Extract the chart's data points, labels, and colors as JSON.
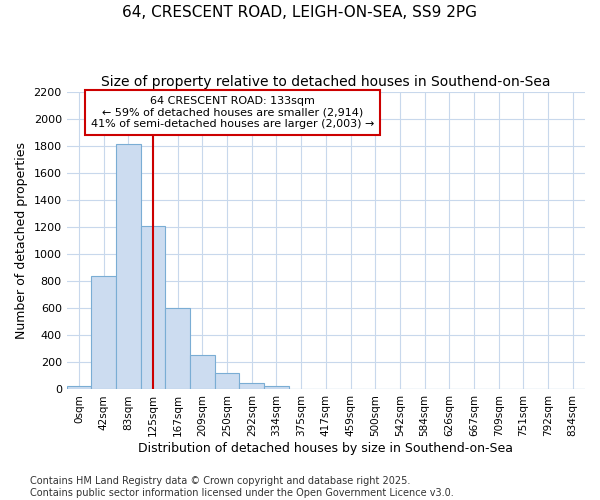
{
  "title1": "64, CRESCENT ROAD, LEIGH-ON-SEA, SS9 2PG",
  "title2": "Size of property relative to detached houses in Southend-on-Sea",
  "xlabel": "Distribution of detached houses by size in Southend-on-Sea",
  "ylabel": "Number of detached properties",
  "footnote": "Contains HM Land Registry data © Crown copyright and database right 2025.\nContains public sector information licensed under the Open Government Licence v3.0.",
  "bin_labels": [
    "0sqm",
    "42sqm",
    "83sqm",
    "125sqm",
    "167sqm",
    "209sqm",
    "250sqm",
    "292sqm",
    "334sqm",
    "375sqm",
    "417sqm",
    "459sqm",
    "500sqm",
    "542sqm",
    "584sqm",
    "626sqm",
    "667sqm",
    "709sqm",
    "751sqm",
    "792sqm",
    "834sqm"
  ],
  "bar_heights": [
    25,
    840,
    1810,
    1210,
    600,
    255,
    125,
    50,
    25,
    0,
    0,
    0,
    0,
    0,
    0,
    0,
    0,
    0,
    0,
    0,
    0
  ],
  "bar_color": "#ccdcf0",
  "bar_edge_color": "#7aadd4",
  "vline_x_index": 3,
  "vline_color": "#cc0000",
  "annotation_text": "64 CRESCENT ROAD: 133sqm\n← 59% of detached houses are smaller (2,914)\n41% of semi-detached houses are larger (2,003) →",
  "annotation_box_color": "#cc0000",
  "annotation_bg": "#ffffff",
  "ylim": [
    0,
    2200
  ],
  "yticks": [
    0,
    200,
    400,
    600,
    800,
    1000,
    1200,
    1400,
    1600,
    1800,
    2000,
    2200
  ],
  "background_color": "#ffffff",
  "plot_bg_color": "#ffffff",
  "grid_color": "#c8d8ec",
  "title1_fontsize": 11,
  "title2_fontsize": 10,
  "xlabel_fontsize": 9,
  "ylabel_fontsize": 9,
  "footnote_fontsize": 7
}
